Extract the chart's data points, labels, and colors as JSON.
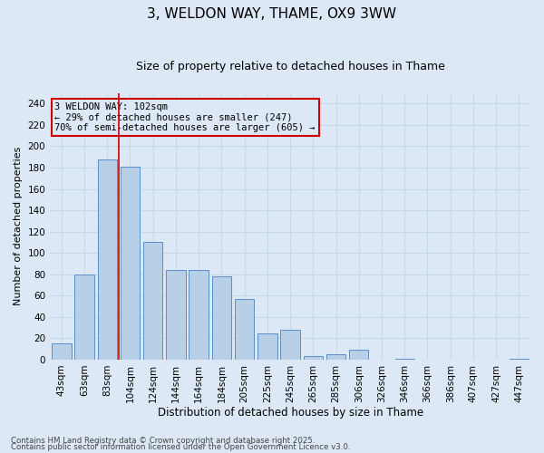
{
  "title1": "3, WELDON WAY, THAME, OX9 3WW",
  "title2": "Size of property relative to detached houses in Thame",
  "xlabel": "Distribution of detached houses by size in Thame",
  "ylabel": "Number of detached properties",
  "categories": [
    "43sqm",
    "63sqm",
    "83sqm",
    "104sqm",
    "124sqm",
    "144sqm",
    "164sqm",
    "184sqm",
    "205sqm",
    "225sqm",
    "245sqm",
    "265sqm",
    "285sqm",
    "306sqm",
    "326sqm",
    "346sqm",
    "366sqm",
    "386sqm",
    "407sqm",
    "427sqm",
    "447sqm"
  ],
  "values": [
    15,
    80,
    188,
    181,
    110,
    84,
    84,
    78,
    57,
    25,
    28,
    3,
    5,
    9,
    0,
    1,
    0,
    0,
    0,
    0,
    1
  ],
  "bar_color": "#b8cfe8",
  "bar_edge_color": "#5b8fc9",
  "grid_color": "#c8d8e8",
  "bg_color": "#dce8f5",
  "vline_color": "#cc0000",
  "vline_x_index": 2.5,
  "annotation_text": "3 WELDON WAY: 102sqm\n← 29% of detached houses are smaller (247)\n70% of semi-detached houses are larger (605) →",
  "annotation_box_color": "#cc0000",
  "ylim": [
    0,
    250
  ],
  "yticks": [
    0,
    20,
    40,
    60,
    80,
    100,
    120,
    140,
    160,
    180,
    200,
    220,
    240
  ],
  "footer1": "Contains HM Land Registry data © Crown copyright and database right 2025.",
  "footer2": "Contains public sector information licensed under the Open Government Licence v3.0.",
  "title1_fontsize": 11,
  "title2_fontsize": 9,
  "ylabel_fontsize": 8,
  "xlabel_fontsize": 8.5,
  "tick_fontsize": 7.5,
  "ann_fontsize": 7.5,
  "footer_fontsize": 6.2
}
